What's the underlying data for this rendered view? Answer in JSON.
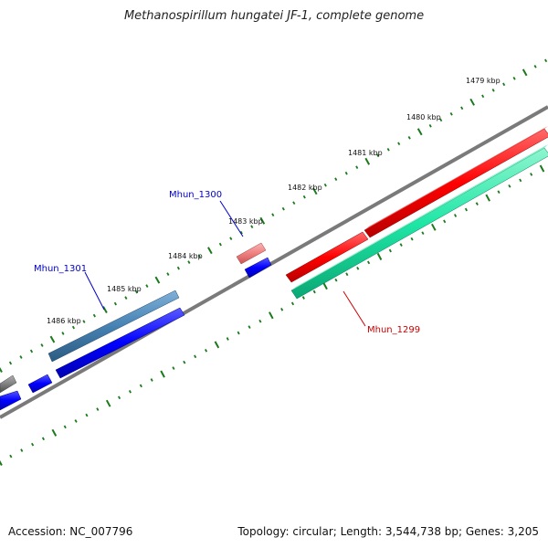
{
  "title": "Methanospirillum hungatei JF-1, complete genome",
  "footer": {
    "accession": "Accession: NC_007796",
    "summary": "Topology: circular; Length: 3,544,738 bp; Genes: 3,205"
  },
  "scale_labels": [
    "1479 kbp",
    "1480 kbp",
    "1481 kbp",
    "1482 kbp",
    "1483 kbp",
    "1484 kbp",
    "1485 kbp",
    "1486 kbp"
  ],
  "gene_labels": [
    {
      "text": "Mhun_1300",
      "color": "#0000cc"
    },
    {
      "text": "Mhun_1301",
      "color": "#0000cc"
    },
    {
      "text": "Mhun_1299",
      "color": "#cc0000"
    }
  ],
  "colors": {
    "backbone": "#7f7f7f",
    "ticks": "#1a7a1a",
    "cds_forward": "#ff0000",
    "cds_forward_light": "#f08080",
    "cds_reverse": "#0000ff",
    "cds_steelblue": "#4682b4",
    "cds_green": "#00e5a0",
    "cds_grey": "#808080"
  }
}
